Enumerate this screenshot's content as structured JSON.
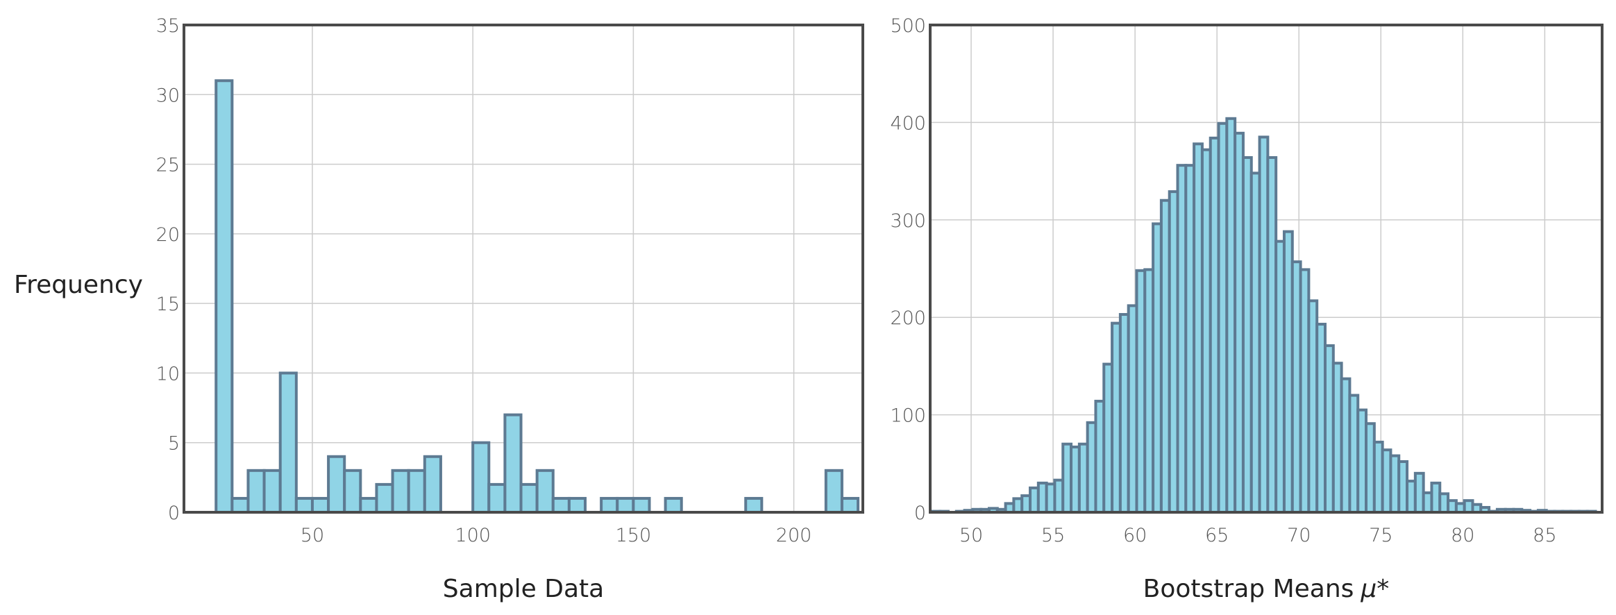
{
  "colors": {
    "bar_fill": "#90d4e6",
    "bar_edge": "#5d7a92",
    "grid": "#cccccc",
    "frame": "#4a4a4a"
  },
  "chart_data": [
    {
      "type": "bar",
      "subtype": "histogram",
      "xlabel": "Sample Data",
      "ylabel": "Frequency",
      "xlim": [
        10,
        221.5
      ],
      "ylim": [
        0,
        35
      ],
      "xticks": [
        50,
        100,
        150,
        200
      ],
      "yticks": [
        0,
        5,
        10,
        15,
        20,
        25,
        30,
        35
      ],
      "grid": true,
      "bins": {
        "start": 10,
        "width": 5.0,
        "counts": [
          0,
          0,
          31,
          1,
          3,
          3,
          10,
          1,
          1,
          4,
          3,
          1,
          2,
          3,
          3,
          4,
          0,
          0,
          5,
          2,
          7,
          2,
          3,
          1,
          1,
          0,
          1,
          1,
          1,
          0,
          1,
          0,
          0,
          0,
          0,
          1,
          0,
          0,
          0,
          0,
          3,
          1
        ]
      }
    },
    {
      "type": "bar",
      "subtype": "histogram",
      "xlabel": "Bootstrap Means",
      "xlabel_symbol": "μ*",
      "ylabel": "",
      "xlim": [
        47.5,
        88.5
      ],
      "ylim": [
        0,
        500
      ],
      "xticks": [
        50,
        55,
        60,
        65,
        70,
        75,
        80,
        85
      ],
      "yticks": [
        0,
        100,
        200,
        300,
        400,
        500
      ],
      "grid": true,
      "bins": {
        "start": 47.6,
        "width": 0.5,
        "counts": [
          1,
          1,
          0,
          1,
          2,
          3,
          3,
          4,
          3,
          9,
          14,
          17,
          25,
          30,
          29,
          33,
          70,
          67,
          70,
          92,
          114,
          152,
          194,
          203,
          212,
          248,
          249,
          296,
          320,
          329,
          356,
          356,
          378,
          372,
          384,
          399,
          404,
          389,
          364,
          348,
          385,
          364,
          278,
          288,
          257,
          249,
          217,
          193,
          171,
          153,
          137,
          120,
          105,
          91,
          72,
          64,
          58,
          52,
          32,
          40,
          20,
          30,
          19,
          12,
          9,
          12,
          8,
          5,
          1,
          3,
          3,
          3,
          2,
          1,
          2,
          1,
          1,
          1,
          1,
          1,
          1
        ]
      }
    }
  ]
}
